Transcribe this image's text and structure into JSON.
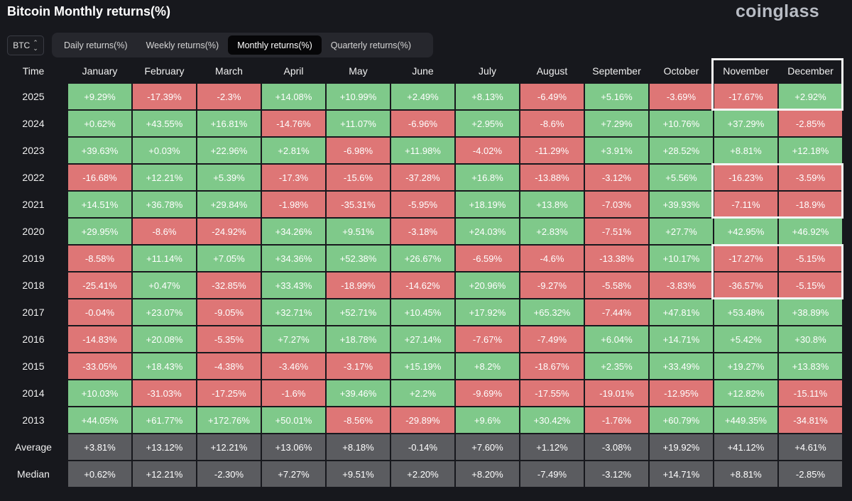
{
  "title": "Bitcoin Monthly returns(%)",
  "brand": "coinglass",
  "coin_select": {
    "value": "BTC",
    "icon": "updown-chevron-icon"
  },
  "tabs": [
    {
      "label": "Daily returns(%)",
      "active": false
    },
    {
      "label": "Weekly returns(%)",
      "active": false
    },
    {
      "label": "Monthly returns(%)",
      "active": true
    },
    {
      "label": "Quarterly returns(%)",
      "active": false
    }
  ],
  "colors": {
    "positive": "#7fc98a",
    "negative": "#de7676",
    "stat": "#5b5c60",
    "highlight_border": "#f4f4f4"
  },
  "table": {
    "corner_label": "Time",
    "months": [
      "January",
      "February",
      "March",
      "April",
      "May",
      "June",
      "July",
      "August",
      "September",
      "October",
      "November",
      "December"
    ],
    "rows": [
      {
        "year": "2025",
        "values": [
          "+9.29%",
          "-17.39%",
          "-2.3%",
          "+14.08%",
          "+10.99%",
          "+2.49%",
          "+8.13%",
          "-6.49%",
          "+5.16%",
          "-3.69%",
          "-17.67%",
          "+2.92%"
        ]
      },
      {
        "year": "2024",
        "values": [
          "+0.62%",
          "+43.55%",
          "+16.81%",
          "-14.76%",
          "+11.07%",
          "-6.96%",
          "+2.95%",
          "-8.6%",
          "+7.29%",
          "+10.76%",
          "+37.29%",
          "-2.85%"
        ]
      },
      {
        "year": "2023",
        "values": [
          "+39.63%",
          "+0.03%",
          "+22.96%",
          "+2.81%",
          "-6.98%",
          "+11.98%",
          "-4.02%",
          "-11.29%",
          "+3.91%",
          "+28.52%",
          "+8.81%",
          "+12.18%"
        ]
      },
      {
        "year": "2022",
        "values": [
          "-16.68%",
          "+12.21%",
          "+5.39%",
          "-17.3%",
          "-15.6%",
          "-37.28%",
          "+16.8%",
          "-13.88%",
          "-3.12%",
          "+5.56%",
          "-16.23%",
          "-3.59%"
        ]
      },
      {
        "year": "2021",
        "values": [
          "+14.51%",
          "+36.78%",
          "+29.84%",
          "-1.98%",
          "-35.31%",
          "-5.95%",
          "+18.19%",
          "+13.8%",
          "-7.03%",
          "+39.93%",
          "-7.11%",
          "-18.9%"
        ]
      },
      {
        "year": "2020",
        "values": [
          "+29.95%",
          "-8.6%",
          "-24.92%",
          "+34.26%",
          "+9.51%",
          "-3.18%",
          "+24.03%",
          "+2.83%",
          "-7.51%",
          "+27.7%",
          "+42.95%",
          "+46.92%"
        ]
      },
      {
        "year": "2019",
        "values": [
          "-8.58%",
          "+11.14%",
          "+7.05%",
          "+34.36%",
          "+52.38%",
          "+26.67%",
          "-6.59%",
          "-4.6%",
          "-13.38%",
          "+10.17%",
          "-17.27%",
          "-5.15%"
        ]
      },
      {
        "year": "2018",
        "values": [
          "-25.41%",
          "+0.47%",
          "-32.85%",
          "+33.43%",
          "-18.99%",
          "-14.62%",
          "+20.96%",
          "-9.27%",
          "-5.58%",
          "-3.83%",
          "-36.57%",
          "-5.15%"
        ]
      },
      {
        "year": "2017",
        "values": [
          "-0.04%",
          "+23.07%",
          "-9.05%",
          "+32.71%",
          "+52.71%",
          "+10.45%",
          "+17.92%",
          "+65.32%",
          "-7.44%",
          "+47.81%",
          "+53.48%",
          "+38.89%"
        ]
      },
      {
        "year": "2016",
        "values": [
          "-14.83%",
          "+20.08%",
          "-5.35%",
          "+7.27%",
          "+18.78%",
          "+27.14%",
          "-7.67%",
          "-7.49%",
          "+6.04%",
          "+14.71%",
          "+5.42%",
          "+30.8%"
        ]
      },
      {
        "year": "2015",
        "values": [
          "-33.05%",
          "+18.43%",
          "-4.38%",
          "-3.46%",
          "-3.17%",
          "+15.19%",
          "+8.2%",
          "-18.67%",
          "+2.35%",
          "+33.49%",
          "+19.27%",
          "+13.83%"
        ]
      },
      {
        "year": "2014",
        "values": [
          "+10.03%",
          "-31.03%",
          "-17.25%",
          "-1.6%",
          "+39.46%",
          "+2.2%",
          "-9.69%",
          "-17.55%",
          "-19.01%",
          "-12.95%",
          "+12.82%",
          "-15.11%"
        ]
      },
      {
        "year": "2013",
        "values": [
          "+44.05%",
          "+61.77%",
          "+172.76%",
          "+50.01%",
          "-8.56%",
          "-29.89%",
          "+9.6%",
          "+30.42%",
          "-1.76%",
          "+60.79%",
          "+449.35%",
          "-34.81%"
        ]
      }
    ],
    "stats": [
      {
        "label": "Average",
        "values": [
          "+3.81%",
          "+13.12%",
          "+12.21%",
          "+13.06%",
          "+8.18%",
          "-0.14%",
          "+7.60%",
          "+1.12%",
          "-3.08%",
          "+19.92%",
          "+41.12%",
          "+4.61%"
        ]
      },
      {
        "label": "Median",
        "values": [
          "+0.62%",
          "+12.21%",
          "-2.30%",
          "+7.27%",
          "+9.51%",
          "+2.20%",
          "+8.20%",
          "-7.49%",
          "-3.12%",
          "+14.71%",
          "+8.81%",
          "-2.85%"
        ]
      }
    ],
    "highlighted_groups": [
      {
        "months": [
          "November",
          "December"
        ],
        "years": [
          "Time",
          "2025"
        ]
      },
      {
        "months": [
          "November",
          "December"
        ],
        "years": [
          "2022",
          "2021"
        ]
      },
      {
        "months": [
          "November",
          "December"
        ],
        "years": [
          "2019",
          "2018"
        ]
      }
    ]
  }
}
